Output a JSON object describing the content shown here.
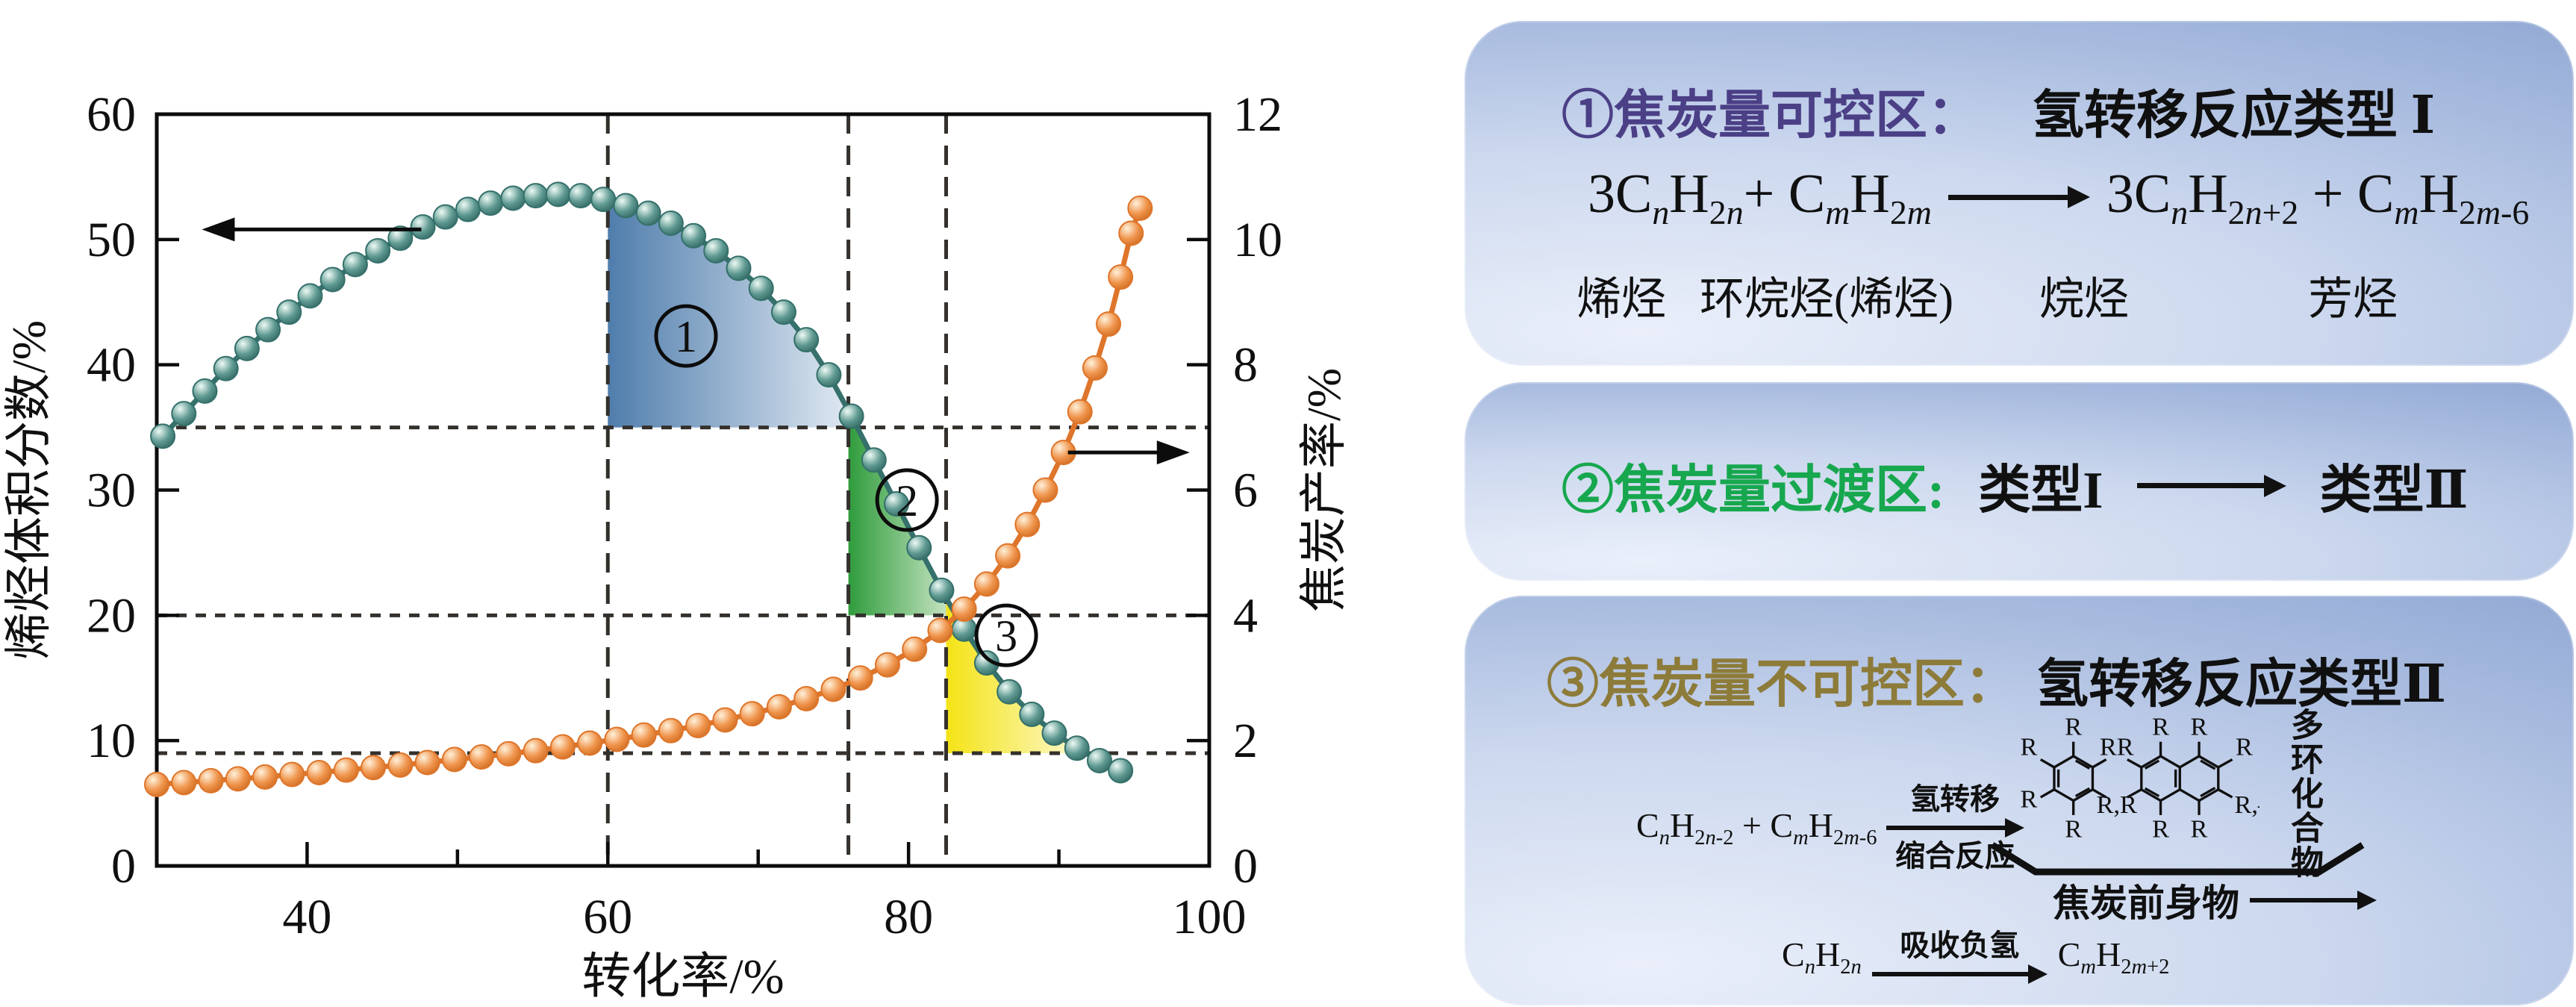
{
  "figure": {
    "background": "#ffffff"
  },
  "chart_data": {
    "type": "line",
    "xlabel": "转化率/%",
    "left_axis_label": "烯烃体积分数/%",
    "right_axis_label": "焦炭产率/%",
    "xlim": [
      30,
      100
    ],
    "left_ylim": [
      0,
      60
    ],
    "right_ylim": [
      0,
      12
    ],
    "x_major_ticks": [
      40,
      60,
      80,
      100
    ],
    "x_minor_ticks": [
      50,
      70,
      90
    ],
    "left_ticks": [
      0,
      10,
      20,
      30,
      40,
      50,
      60
    ],
    "right_ticks": [
      0,
      2,
      4,
      6,
      8,
      10,
      12
    ],
    "grid": false,
    "legend": "none",
    "dashed_vlines_x": [
      60,
      76,
      82.5
    ],
    "dashed_hlines_left_y": [
      35,
      20,
      9
    ],
    "colors": {
      "olefin": "#35706b",
      "olefin_marker_light": "#eefaf5",
      "olefin_marker_mid": "#5f9a92",
      "olefin_marker_dark": "#2a5f5b",
      "coke": "#de752a",
      "coke_marker_light": "#fff1da",
      "coke_marker_mid": "#f0954d",
      "coke_marker_dark": "#c96418",
      "dash": "#34302c",
      "frame": "#0c0c0c",
      "region1": [
        "#4f7dac",
        "#eef3f9"
      ],
      "region2": [
        "#2f9c3c",
        "#e9f4e1"
      ],
      "region3": [
        "#f4e316",
        "#fefce9"
      ]
    },
    "series": [
      {
        "name": "olefin_volume_fraction",
        "axis": "left",
        "points": [
          [
            30.4,
            34.3
          ],
          [
            31.8,
            36.1
          ],
          [
            33.2,
            37.9
          ],
          [
            34.6,
            39.7
          ],
          [
            36,
            41.3
          ],
          [
            37.4,
            42.8
          ],
          [
            38.8,
            44.2
          ],
          [
            40.2,
            45.5
          ],
          [
            41.7,
            46.8
          ],
          [
            43.2,
            48.0
          ],
          [
            44.7,
            49.1
          ],
          [
            46.2,
            50.1
          ],
          [
            47.7,
            51.0
          ],
          [
            49.2,
            51.8
          ],
          [
            50.7,
            52.4
          ],
          [
            52.2,
            52.9
          ],
          [
            53.7,
            53.3
          ],
          [
            55.2,
            53.5
          ],
          [
            56.7,
            53.6
          ],
          [
            58.2,
            53.5
          ],
          [
            59.7,
            53.2
          ],
          [
            61.2,
            52.7
          ],
          [
            62.7,
            52.1
          ],
          [
            64.2,
            51.3
          ],
          [
            65.7,
            50.3
          ],
          [
            67.2,
            49.1
          ],
          [
            68.7,
            47.7
          ],
          [
            70.2,
            46.1
          ],
          [
            71.7,
            44.2
          ],
          [
            73.2,
            42.0
          ],
          [
            74.7,
            39.2
          ],
          [
            76.2,
            35.9
          ],
          [
            77.7,
            32.4
          ],
          [
            79.2,
            28.9
          ],
          [
            80.7,
            25.4
          ],
          [
            82.2,
            22.0
          ],
          [
            83.7,
            18.9
          ],
          [
            85.2,
            16.2
          ],
          [
            86.7,
            13.9
          ],
          [
            88.2,
            12.1
          ],
          [
            89.7,
            10.6
          ],
          [
            91.2,
            9.4
          ],
          [
            92.7,
            8.4
          ],
          [
            94.1,
            7.6
          ]
        ]
      },
      {
        "name": "coke_yield",
        "axis": "right",
        "points": [
          [
            30,
            1.3
          ],
          [
            31.8,
            1.33
          ],
          [
            33.6,
            1.36
          ],
          [
            35.4,
            1.39
          ],
          [
            37.2,
            1.42
          ],
          [
            39,
            1.46
          ],
          [
            40.8,
            1.49
          ],
          [
            42.6,
            1.53
          ],
          [
            44.4,
            1.57
          ],
          [
            46.2,
            1.61
          ],
          [
            48,
            1.65
          ],
          [
            49.8,
            1.7
          ],
          [
            51.6,
            1.74
          ],
          [
            53.4,
            1.79
          ],
          [
            55.2,
            1.84
          ],
          [
            57,
            1.9
          ],
          [
            58.8,
            1.96
          ],
          [
            60.6,
            2.02
          ],
          [
            62.4,
            2.09
          ],
          [
            64.2,
            2.16
          ],
          [
            66,
            2.24
          ],
          [
            67.8,
            2.33
          ],
          [
            69.6,
            2.43
          ],
          [
            71.4,
            2.54
          ],
          [
            73.2,
            2.67
          ],
          [
            75,
            2.82
          ],
          [
            76.8,
            3.0
          ],
          [
            78.6,
            3.21
          ],
          [
            80.4,
            3.46
          ],
          [
            82.1,
            3.76
          ],
          [
            83.7,
            4.1
          ],
          [
            85.2,
            4.5
          ],
          [
            86.6,
            4.95
          ],
          [
            87.9,
            5.45
          ],
          [
            89.1,
            6.0
          ],
          [
            90.3,
            6.6
          ],
          [
            91.4,
            7.25
          ],
          [
            92.4,
            7.95
          ],
          [
            93.3,
            8.65
          ],
          [
            94.1,
            9.4
          ],
          [
            94.8,
            10.1
          ],
          [
            95.4,
            10.5
          ]
        ]
      }
    ],
    "regions": [
      {
        "label": "1",
        "x_from": 60,
        "baseline_left_y": 35,
        "label_pos": [
          65.2,
          42.3
        ]
      },
      {
        "label": "2",
        "x_from": 76,
        "baseline_left_y": 20,
        "label_pos": [
          79.9,
          29.2
        ]
      },
      {
        "label": "3",
        "x_from": 82.5,
        "baseline_left_y": 9,
        "label_pos": [
          86.5,
          18.4
        ]
      }
    ],
    "annotation_arrows": [
      {
        "dir": "left",
        "axis": "left",
        "y": 50.8,
        "x_tail": 47.6,
        "x_head": 33.0
      },
      {
        "dir": "right",
        "axis": "right",
        "y": 6.6,
        "x_tail": 90.6,
        "x_head": 98.7
      }
    ]
  },
  "panels": {
    "p1": {
      "title_region": "①焦炭量可控区：",
      "title_reaction": "氢转移反应类型 Ⅰ",
      "reaction_left": "3C_{n}H_{2n}+ C_{m}H_{2m}",
      "reaction_right": "3C_{n}H_{2n+2} + C_{m}H_{2m-6}",
      "species": [
        "烯烃",
        "环烷烃(烯烃)",
        "烷烃",
        "芳烃"
      ],
      "accent_color": "#4b3f86"
    },
    "p2": {
      "title_region": "②焦炭量过渡区:",
      "from_type": "类型I",
      "to_type": "类型Ⅱ",
      "accent_color": "#17a74e"
    },
    "p3": {
      "title_region": "③焦炭量不可控区：",
      "title_reaction": "氢转移反应类型Ⅱ",
      "reactants": "C_{n}H_{2n-2} + C_{m}H_{2m-6}",
      "arrow_top": "氢转移",
      "arrow_bottom": "缩合反应",
      "polycyclic_label": "多环化合物",
      "precursor_label": "焦炭前身物",
      "bottom_from": "C_{n}H_{2n}",
      "bottom_arrow_label": "吸收负氢",
      "bottom_to": "C_{m}H_{2m+2}",
      "ring_labels": {
        "r": "R",
        "rr": "RR",
        "rcr": "R,R",
        "rdash": "R,–"
      },
      "accent_color": "#8d7b3a"
    }
  }
}
